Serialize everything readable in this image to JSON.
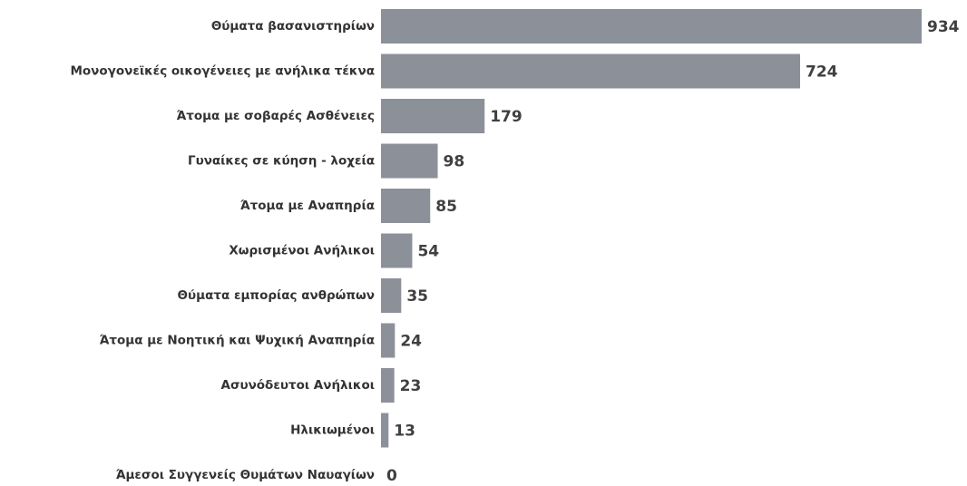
{
  "chart_data": {
    "type": "bar",
    "orientation": "horizontal",
    "color": "#8c9199",
    "categories": [
      "Θύματα βασανιστηρίων",
      "Μονογονεϊκές οικογένειες με ανήλικα τέκνα",
      "Άτομα με σοβαρές Ασθένειες",
      "Γυναίκες σε κύηση - λοχεία",
      "Άτομα με Αναπηρία",
      "Χωρισμένοι Ανήλικοι",
      "Θύματα εμπορίας ανθρώπων",
      "Άτομα με Νοητική και Ψυχική Αναπηρία",
      "Ασυνόδευτοι Ανήλικοι",
      "Ηλικιωμένοι",
      "Άμεσοι Συγγενείς Θυμάτων Ναυαγίων"
    ],
    "values": [
      934,
      724,
      179,
      98,
      85,
      54,
      35,
      24,
      23,
      13,
      0
    ]
  }
}
